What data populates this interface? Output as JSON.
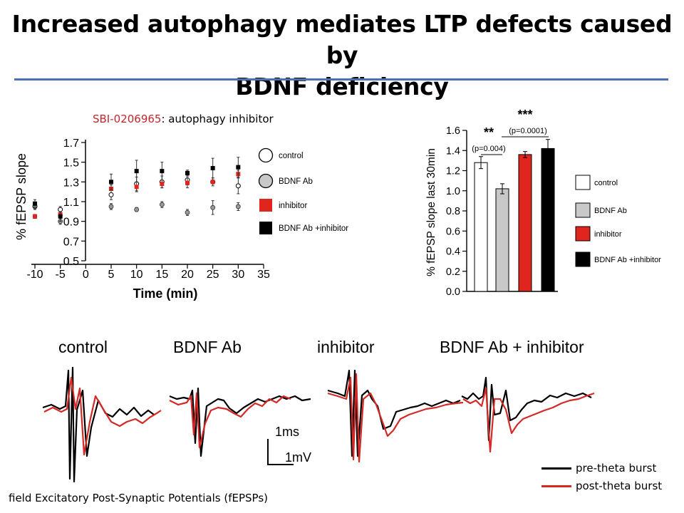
{
  "slide": {
    "title_line1": "Increased autophagy mediates LTP defects caused by",
    "title_line2": "BDNF deficiency",
    "subtitle_highlight": "SBI-0206965",
    "subtitle_rest": ": autophagy inhibitor",
    "footer": "field Excitatory Post-Synaptic Potentials (fEPSPs)"
  },
  "chart_data": [
    {
      "type": "scatter",
      "xlabel": "Time (min)",
      "ylabel": "% fEPSP slope",
      "xlim": [
        -10,
        35
      ],
      "ylim": [
        0.5,
        1.7
      ],
      "xticks": [
        "-10",
        "-5",
        "0",
        "5",
        "10",
        "15",
        "20",
        "25",
        "30",
        "35"
      ],
      "yticks": [
        "0.5",
        "0.7",
        "0.9",
        "1.1",
        "1.3",
        "1.5",
        "1.7"
      ],
      "legend_position": "right",
      "series": [
        {
          "name": "control",
          "marker": "open-circle",
          "color": "#ffffff",
          "x": [
            -10,
            -5,
            5,
            10,
            15,
            20,
            25,
            30
          ],
          "y": [
            1.05,
            1.02,
            1.17,
            1.28,
            1.3,
            1.32,
            1.3,
            1.26
          ],
          "err": [
            0.03,
            0.03,
            0.05,
            0.07,
            0.06,
            0.05,
            0.0,
            0.08
          ]
        },
        {
          "name": "BDNF Ab",
          "marker": "gray-circle",
          "color": "#9a9a9a",
          "x": [
            -10,
            -5,
            5,
            10,
            15,
            20,
            25,
            30
          ],
          "y": [
            1.06,
            0.9,
            1.05,
            1.02,
            1.07,
            0.99,
            1.04,
            1.05
          ],
          "err": [
            0.03,
            0.03,
            0.03,
            0.02,
            0.03,
            0.03,
            0.07,
            0.04
          ]
        },
        {
          "name": "inhibitor",
          "marker": "red-square",
          "color": "#e0251f",
          "x": [
            -10,
            -5,
            5,
            10,
            15,
            20,
            25,
            30
          ],
          "y": [
            0.95,
            0.97,
            1.23,
            1.25,
            1.28,
            1.29,
            1.3,
            1.38
          ],
          "err": [
            0.02,
            0.02,
            0.04,
            0.05,
            0.04,
            0.05,
            0.04,
            0.04
          ]
        },
        {
          "name": "BDNF Ab +inhibitor",
          "marker": "black-square",
          "color": "#000000",
          "x": [
            -10,
            -5,
            5,
            10,
            15,
            20,
            25,
            30
          ],
          "y": [
            1.08,
            0.95,
            1.3,
            1.41,
            1.41,
            1.39,
            1.44,
            1.45
          ],
          "err": [
            0.04,
            0.05,
            0.08,
            0.11,
            0.09,
            0.03,
            0.1,
            0.1
          ]
        }
      ]
    },
    {
      "type": "bar",
      "ylabel": "% fEPSP slope last 30min",
      "ylim": [
        0.0,
        1.6
      ],
      "yticks": [
        "0.0",
        "0.2",
        "0.4",
        "0.6",
        "0.8",
        "1.0",
        "1.2",
        "1.4",
        "1.6"
      ],
      "legend_position": "right",
      "categories": [
        "control",
        "BDNF Ab",
        "inhibitor",
        "BDNF Ab +inhibitor"
      ],
      "colors": [
        "#ffffff",
        "#c8c8c8",
        "#e0251f",
        "#000000"
      ],
      "values": [
        1.28,
        1.02,
        1.36,
        1.42
      ],
      "errors": [
        0.06,
        0.05,
        0.03,
        0.09
      ],
      "annotations": [
        {
          "text": "**",
          "p_text": "(p=0.004)",
          "between": [
            0,
            1
          ]
        },
        {
          "text": "***",
          "p_text": "(p=0.0001)",
          "between": [
            1,
            3
          ]
        }
      ]
    }
  ],
  "traces": {
    "labels": [
      "control",
      "BDNF Ab",
      "inhibitor",
      "BDNF Ab + inhibitor"
    ],
    "scale_time": "1ms",
    "scale_voltage": "1mV",
    "legend": [
      {
        "label": "pre-theta burst",
        "color": "#000000"
      },
      {
        "label": "post-theta burst",
        "color": "#d42a27"
      }
    ]
  }
}
